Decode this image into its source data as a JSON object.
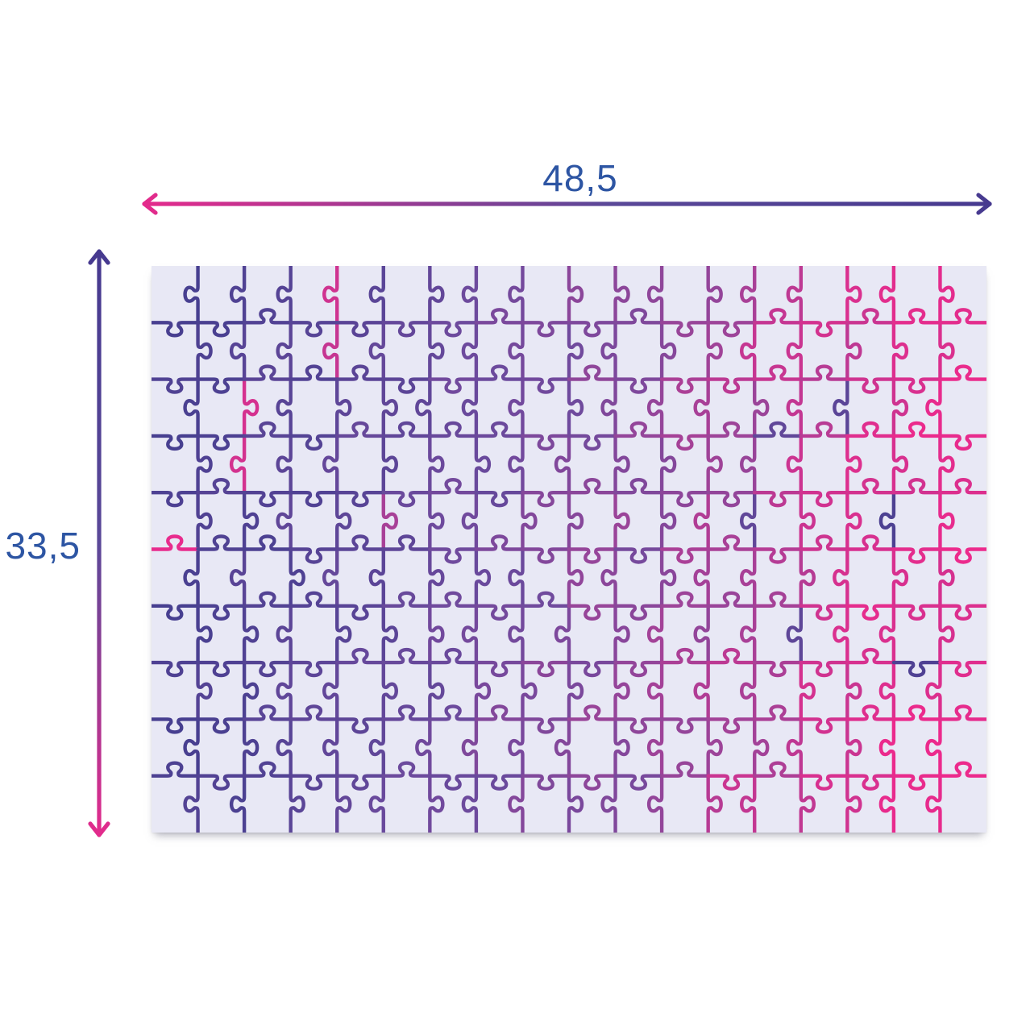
{
  "figure": {
    "type": "puzzle-dimensions-diagram",
    "width_label": "48,5",
    "height_label": "33,5",
    "label_color": "#2d55a3",
    "arrow": {
      "pink": "#e62a8c",
      "mid": "#5a4898",
      "purple": "#46398f"
    },
    "puzzle": {
      "columns": 18,
      "rows": 10,
      "pieces": 180,
      "background": "#e8e8f5",
      "seed": 7,
      "outlier_rate": 0.04,
      "gradient": [
        {
          "at": 0,
          "color": "#473f90"
        },
        {
          "at": 0.4,
          "color": "#6d4a9d"
        },
        {
          "at": 0.65,
          "color": "#9c4499"
        },
        {
          "at": 0.82,
          "color": "#cf3390"
        },
        {
          "at": 1,
          "color": "#ec2a8c"
        }
      ]
    }
  }
}
